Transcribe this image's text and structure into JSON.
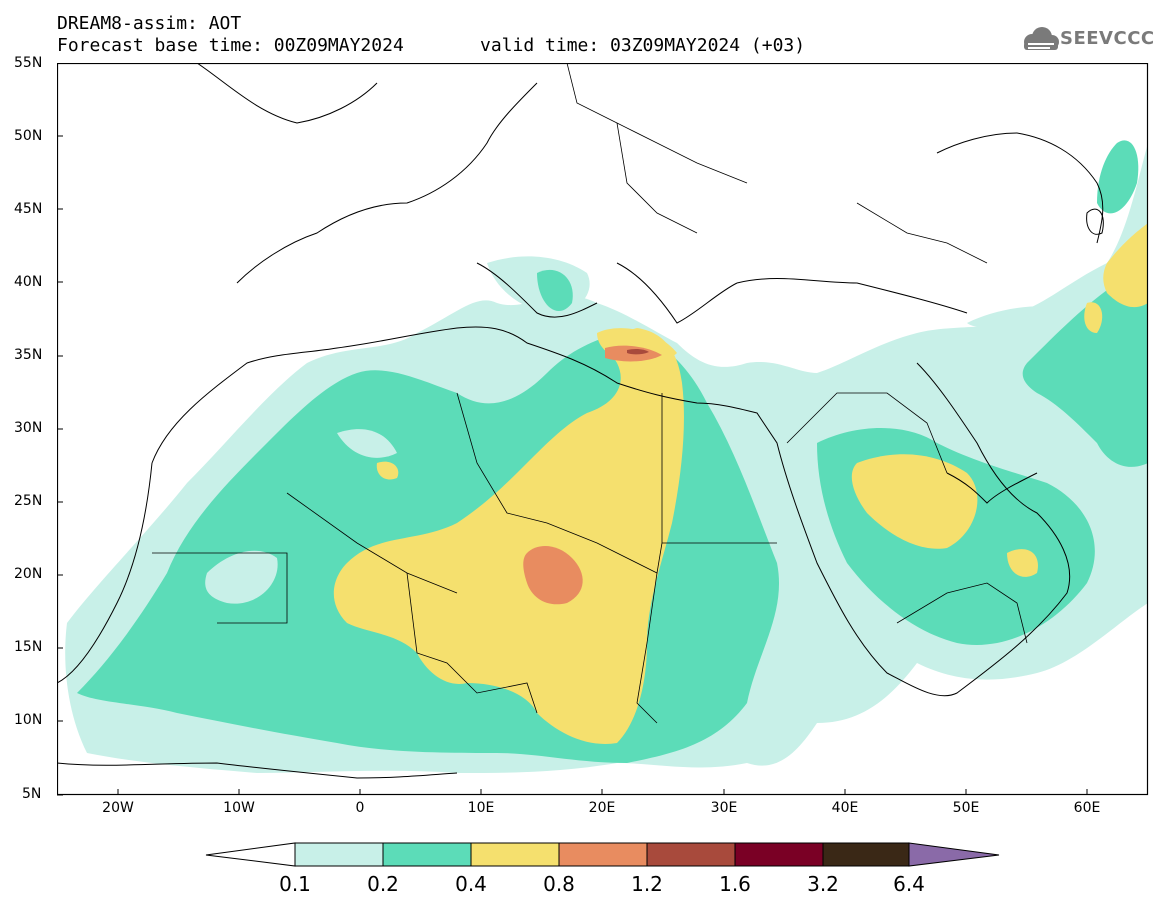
{
  "title": {
    "line1": "DREAM8-assim: AOT",
    "line2": "Forecast base time: 00Z09MAY2024",
    "valid": "valid time: 03Z09MAY2024 (+03)"
  },
  "logo": {
    "text": "SEEVCCC"
  },
  "axes": {
    "lat_labels": [
      "55N",
      "50N",
      "45N",
      "40N",
      "35N",
      "30N",
      "25N",
      "20N",
      "15N",
      "10N",
      "5N"
    ],
    "lon_labels": [
      "20W",
      "10W",
      "0",
      "10E",
      "20E",
      "30E",
      "40E",
      "50E",
      "60E"
    ]
  },
  "colorbar": {
    "labels": [
      "0.1",
      "0.2",
      "0.4",
      "0.8",
      "1.2",
      "1.6",
      "3.2",
      "6.4"
    ],
    "colors": [
      "#c8f0e8",
      "#5cdcb8",
      "#f5e06e",
      "#e88c60",
      "#a84a3c",
      "#7a0025",
      "#3a2816",
      "#8a6aa8"
    ]
  },
  "map": {
    "lon_range": [
      -25,
      65
    ],
    "lat_range": [
      5,
      55
    ],
    "field": "AOT"
  }
}
